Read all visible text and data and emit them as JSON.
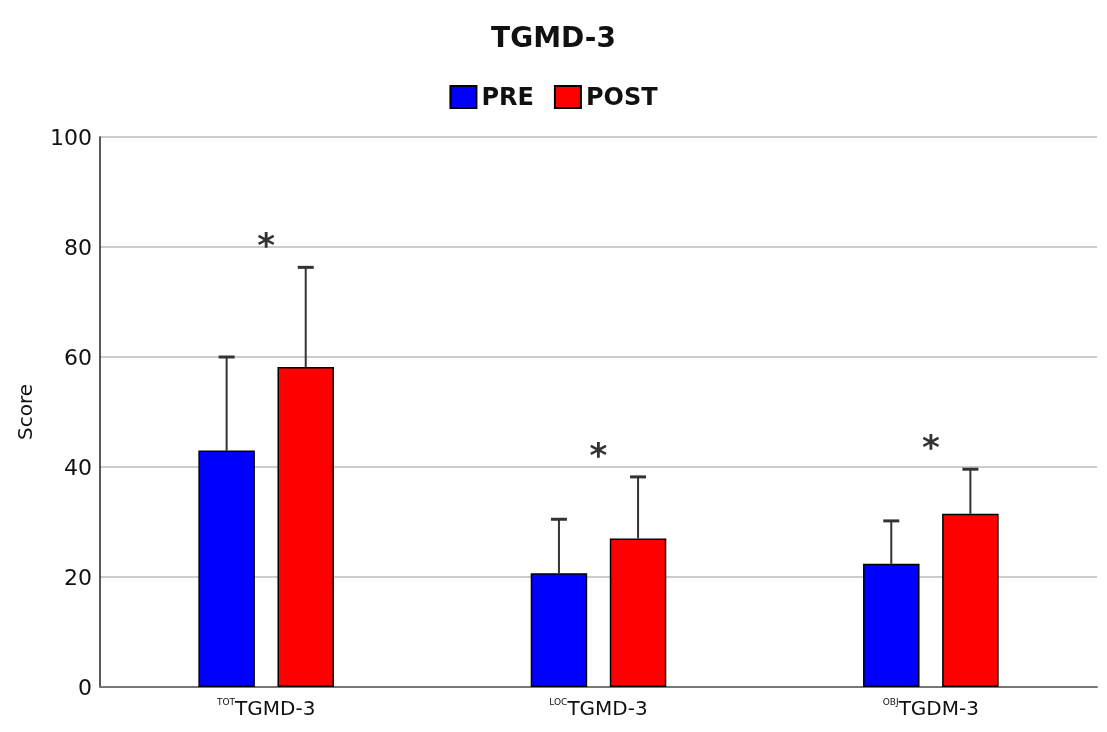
{
  "chart_data": {
    "type": "bar",
    "title": "TGMD-3",
    "ylabel": "Score",
    "categories": [
      "$^{TOT}$TGMD-3",
      "$^{LOC}$TGMD-3",
      "$^{OBJ}$TGDM-3"
    ],
    "series": [
      {
        "name": "PRE",
        "color": "#0000ff",
        "values": [
          43,
          20.7,
          22.4
        ],
        "errors": [
          [
            43,
            60
          ],
          [
            20.7,
            30.5
          ],
          [
            22.4,
            30.2
          ]
        ]
      },
      {
        "name": "POST",
        "color": "#ff0000",
        "values": [
          58.2,
          27,
          31.5
        ],
        "errors": [
          [
            58.2,
            76.3
          ],
          [
            27,
            38.2
          ],
          [
            31.5,
            39.6
          ]
        ]
      }
    ],
    "ylim": [
      0,
      100
    ],
    "yticks": [
      0,
      20,
      40,
      60,
      80,
      100
    ],
    "grid": "y",
    "legend": "top",
    "annotations": [
      "*",
      "*",
      "*"
    ]
  }
}
